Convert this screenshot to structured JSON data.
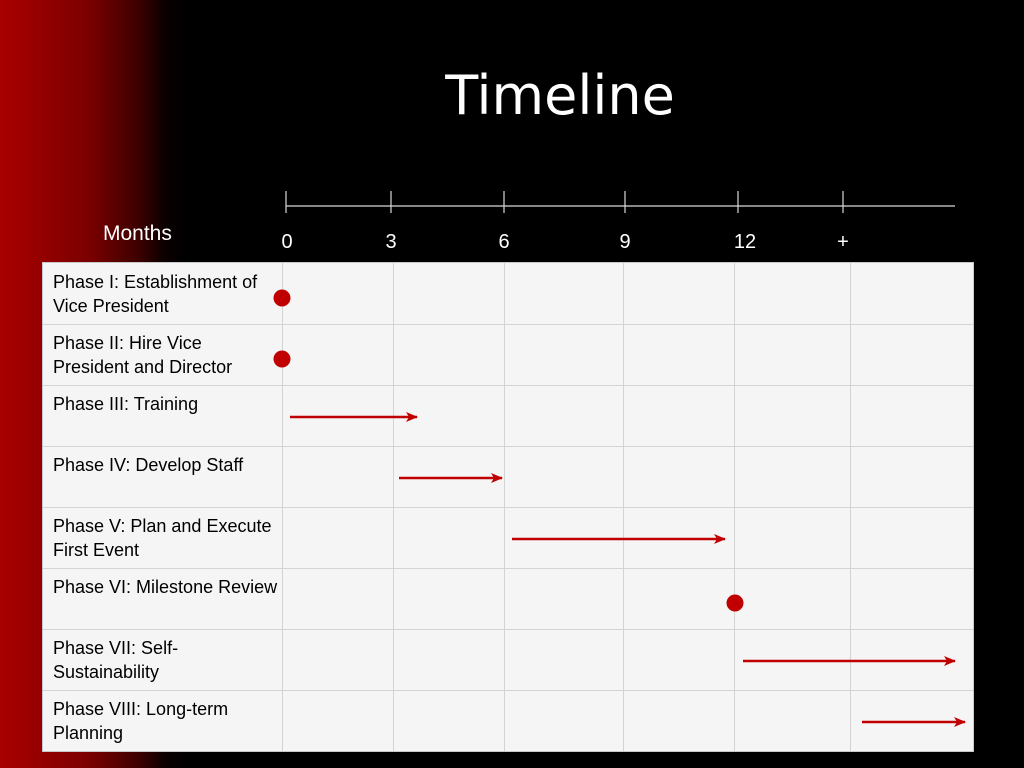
{
  "slide": {
    "title": "Timeline"
  },
  "chart_data": {
    "type": "table",
    "axis_label": "Months",
    "ticks": [
      "0",
      "3",
      "6",
      "9",
      "12",
      "+"
    ],
    "accent_color": "#c00000",
    "phases": [
      {
        "label": "Phase I:  Establishment of Vice President",
        "mark": "milestone",
        "at": 0
      },
      {
        "label": "Phase II:  Hire Vice President and Director",
        "mark": "milestone",
        "at": 0
      },
      {
        "label": "Phase III:  Training",
        "mark": "span",
        "start": 0,
        "end": 3
      },
      {
        "label": "Phase IV: Develop Staff",
        "mark": "span",
        "start": 3,
        "end": 6
      },
      {
        "label": "Phase V:  Plan and Execute First Event",
        "mark": "span",
        "start": 6,
        "end": 12
      },
      {
        "label": "Phase VI:  Milestone Review",
        "mark": "milestone",
        "at": 12
      },
      {
        "label": "Phase VII:  Self-Sustainability",
        "mark": "span",
        "start": 12,
        "end": "+"
      },
      {
        "label": "Phase VIII:  Long-term Planning",
        "mark": "span",
        "start": "+",
        "end": "+"
      }
    ]
  }
}
